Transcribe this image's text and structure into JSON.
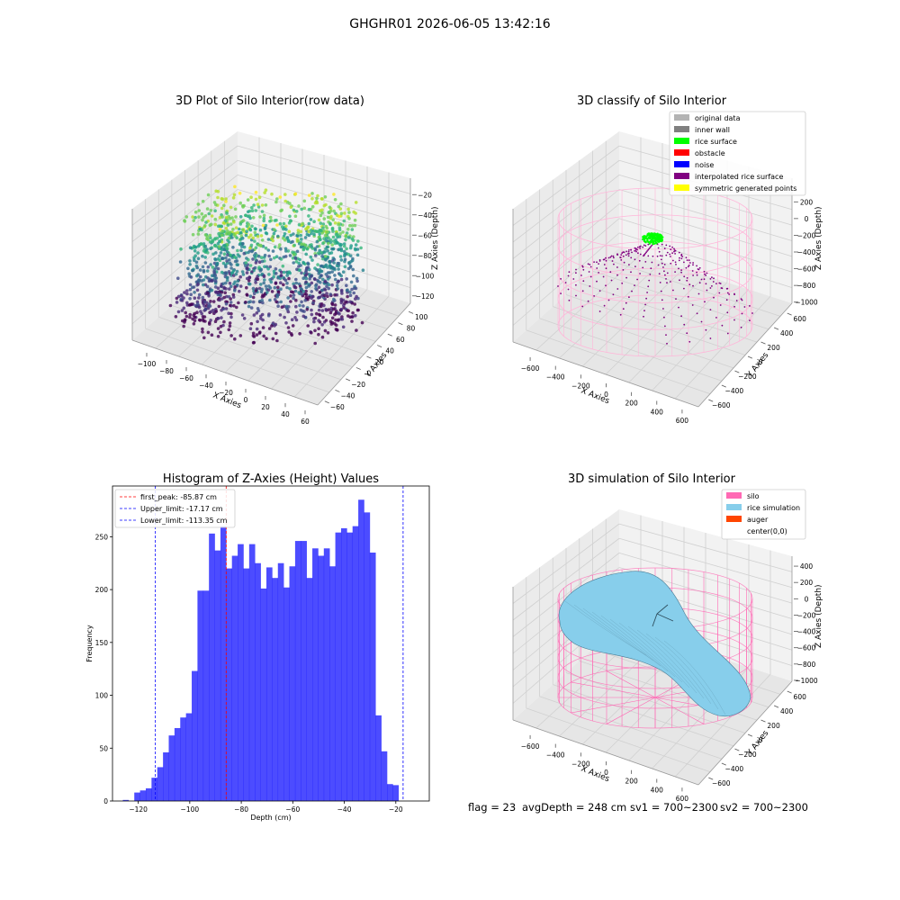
{
  "suptitle": "GHGHR01 2026-06-05 13:42:16",
  "footer": {
    "flag": "flag = 23",
    "avg_depth": "avgDepth = 248 cm",
    "sv1": "sv1 = 700~2300",
    "sv2": "sv2 = 700~2300"
  },
  "panels": {
    "raw": {
      "title": "3D Plot of Silo Interior(row data)",
      "xlabel": "X Axies",
      "ylabel": "Y Axies",
      "zlabel": "Z Axies (Depth)",
      "xticks": [
        "−100",
        "−80",
        "−60",
        "−40",
        "−20",
        "0",
        "20",
        "40",
        "60"
      ],
      "yticks": [
        "−60",
        "−40",
        "−20",
        "0",
        "20",
        "40",
        "60",
        "80",
        "100"
      ],
      "zticks": [
        "−20",
        "−40",
        "−60",
        "−80",
        "−100",
        "−120"
      ]
    },
    "classify": {
      "title": "3D classify of Silo Interior",
      "xlabel": "X Axies",
      "ylabel": "Y Axies",
      "zlabel": "Z Axies (Depth)",
      "xticks": [
        "−600",
        "−400",
        "−200",
        "0",
        "200",
        "400",
        "600"
      ],
      "yticks": [
        "−600",
        "−400",
        "−200",
        "0",
        "200",
        "400",
        "600"
      ],
      "zticks": [
        "200",
        "0",
        "−200",
        "−400",
        "−600",
        "−800",
        "−1000"
      ],
      "legend": [
        {
          "label": "original data",
          "color": "#b3b3b3"
        },
        {
          "label": "inner wall",
          "color": "#808080"
        },
        {
          "label": "rice surface",
          "color": "#00ff00"
        },
        {
          "label": "obstacle",
          "color": "#ff0000"
        },
        {
          "label": "noise",
          "color": "#0000ff"
        },
        {
          "label": "interpolated rice surface",
          "color": "#800080"
        },
        {
          "label": "symmetric generated points",
          "color": "#ffff00"
        }
      ]
    },
    "simulation": {
      "title": "3D simulation of Silo Interior",
      "xlabel": "X Axies",
      "ylabel": "Y Axies",
      "zlabel": "Z Axies (Depth)",
      "xticks": [
        "−600",
        "−400",
        "−200",
        "0",
        "200",
        "400",
        "600"
      ],
      "yticks": [
        "−600",
        "−400",
        "−200",
        "0",
        "200",
        "400",
        "600"
      ],
      "zticks": [
        "400",
        "200",
        "0",
        "−200",
        "−400",
        "−600",
        "−800",
        "−1000"
      ],
      "legend": [
        {
          "label": "silo",
          "color": "#ff69b4"
        },
        {
          "label": "rice simulation",
          "color": "#87ceeb"
        },
        {
          "label": "auger",
          "color": "#ff4500"
        },
        {
          "label": "center(0,0)",
          "color": "#ffffff"
        }
      ]
    }
  },
  "chart_data": {
    "type": "bar",
    "title": "Histogram of Z-Axies (Height) Values",
    "xlabel": "Depth (cm)",
    "ylabel": "Frequency",
    "xlim": [
      -130,
      -7
    ],
    "ylim": [
      0,
      298
    ],
    "xticks": [
      -120,
      -100,
      -80,
      -60,
      -40,
      -20
    ],
    "yticks": [
      0,
      50,
      100,
      150,
      200,
      250
    ],
    "bar_color": "#0000ff",
    "bin_start": -126.0,
    "bin_width": 2.23,
    "values": [
      1,
      0,
      8,
      10,
      12,
      22,
      32,
      46,
      62,
      69,
      79,
      83,
      123,
      199,
      199,
      253,
      237,
      260,
      220,
      232,
      243,
      220,
      243,
      225,
      201,
      221,
      211,
      225,
      202,
      222,
      246,
      246,
      211,
      239,
      232,
      239,
      222,
      254,
      258,
      254,
      260,
      285,
      273,
      235,
      81,
      47,
      16,
      15
    ],
    "vlines": [
      {
        "label": "first_peak: -85.87 cm",
        "x": -85.87,
        "color": "#ff0000"
      },
      {
        "label": "Upper_limit: -17.17 cm",
        "x": -17.17,
        "color": "#0000ff"
      },
      {
        "label": "Lower_limit: -113.35 cm",
        "x": -113.35,
        "color": "#0000ff"
      }
    ],
    "legend_position": "upper-left"
  }
}
